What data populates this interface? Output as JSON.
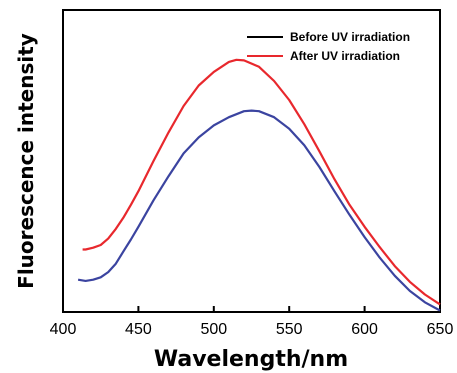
{
  "chart_data": {
    "type": "line",
    "xlabel": "Wavelength/nm",
    "ylabel": "Fluorescence intensity",
    "xlim": [
      400,
      650
    ],
    "ylim": [
      0,
      1
    ],
    "x_ticks": [
      "400",
      "450",
      "500",
      "550",
      "600",
      "650"
    ],
    "y_ticks_shown": false,
    "grid": false,
    "legend_position": "top-right",
    "legend": [
      {
        "label": "Before UV irradiation",
        "color": "#000000"
      },
      {
        "label": "After UV irradiation",
        "color": "#e8282d"
      }
    ],
    "series": [
      {
        "color": "#3b44a0",
        "x": [
          410,
          415,
          420,
          425,
          430,
          435,
          440,
          445,
          450,
          460,
          470,
          480,
          490,
          500,
          510,
          520,
          525,
          530,
          540,
          550,
          560,
          570,
          580,
          590,
          600,
          610,
          620,
          630,
          640,
          650
        ],
        "y": [
          0.107,
          0.103,
          0.107,
          0.115,
          0.132,
          0.16,
          0.2,
          0.24,
          0.282,
          0.37,
          0.45,
          0.525,
          0.578,
          0.618,
          0.645,
          0.665,
          0.667,
          0.665,
          0.645,
          0.607,
          0.552,
          0.48,
          0.4,
          0.322,
          0.248,
          0.18,
          0.12,
          0.07,
          0.032,
          0.005
        ]
      },
      {
        "color": "#e8282d",
        "x": [
          413,
          415,
          420,
          425,
          430,
          435,
          440,
          445,
          450,
          460,
          470,
          480,
          490,
          500,
          510,
          515,
          520,
          530,
          540,
          550,
          560,
          570,
          580,
          590,
          600,
          610,
          620,
          630,
          640,
          650
        ],
        "y": [
          0.207,
          0.207,
          0.213,
          0.222,
          0.243,
          0.275,
          0.312,
          0.355,
          0.4,
          0.5,
          0.595,
          0.682,
          0.75,
          0.795,
          0.828,
          0.835,
          0.833,
          0.812,
          0.765,
          0.702,
          0.622,
          0.532,
          0.44,
          0.355,
          0.282,
          0.215,
          0.152,
          0.1,
          0.058,
          0.025
        ]
      }
    ]
  }
}
